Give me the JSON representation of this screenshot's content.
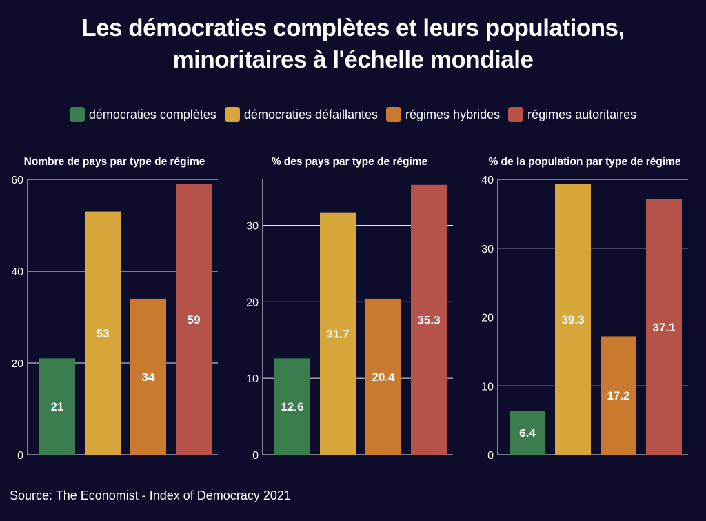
{
  "title_line1": "Les démocraties complètes et leurs populations,",
  "title_line2": "minoritaires à l'échelle mondiale",
  "source": "Source: The Economist - Index of Democracy 2021",
  "legend": [
    {
      "label": "démocraties complètes",
      "color": "#3c7d4f"
    },
    {
      "label": "démocraties défaillantes",
      "color": "#d6a63a"
    },
    {
      "label": "régimes hybrides",
      "color": "#c97a2e"
    },
    {
      "label": "régimes autoritaires",
      "color": "#b5534a"
    }
  ],
  "chart_data": [
    {
      "type": "bar",
      "title": "Nombre de pays par type de régime",
      "categories": [
        "démocraties complètes",
        "démocraties défaillantes",
        "régimes hybrides",
        "régimes autoritaires"
      ],
      "values": [
        21,
        53,
        34,
        59
      ],
      "value_labels": [
        "21",
        "53",
        "34",
        "59"
      ],
      "ylim": [
        0,
        60
      ],
      "yticks": [
        0,
        20,
        40,
        60
      ],
      "grid": true
    },
    {
      "type": "bar",
      "title": "% des pays par type de régime",
      "categories": [
        "démocraties complètes",
        "démocraties défaillantes",
        "régimes hybrides",
        "régimes autoritaires"
      ],
      "values": [
        12.6,
        31.7,
        20.4,
        35.3
      ],
      "value_labels": [
        "12.6",
        "31.7",
        "20.4",
        "35.3"
      ],
      "ylim": [
        0,
        36
      ],
      "yticks": [
        0,
        10,
        20,
        30
      ],
      "grid": true
    },
    {
      "type": "bar",
      "title": "% de la population par type de régime",
      "categories": [
        "démocraties complètes",
        "démocraties défaillantes",
        "régimes hybrides",
        "régimes autoritaires"
      ],
      "values": [
        6.4,
        39.3,
        17.2,
        37.1
      ],
      "value_labels": [
        "6.4",
        "39.3",
        "17.2",
        "37.1"
      ],
      "ylim": [
        0,
        40
      ],
      "yticks": [
        0,
        10,
        20,
        30,
        40
      ],
      "grid": true
    }
  ]
}
